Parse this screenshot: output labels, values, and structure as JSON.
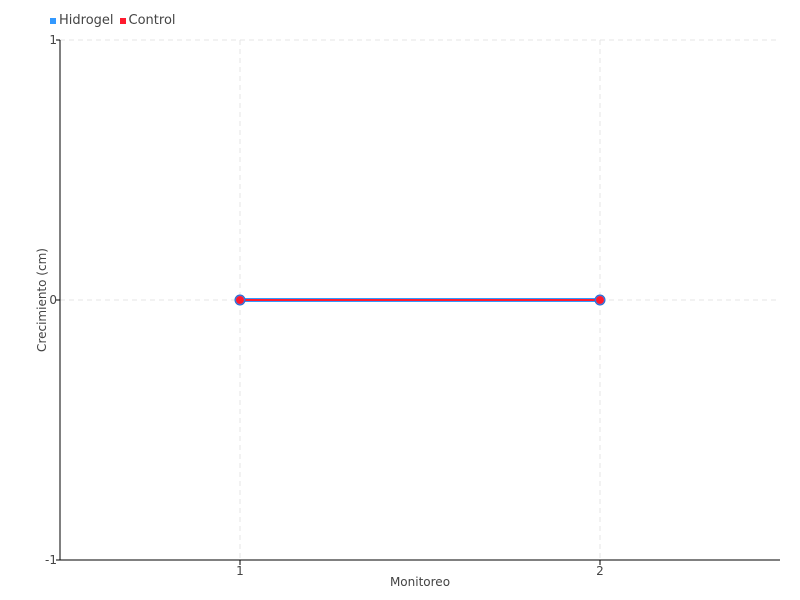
{
  "chart_data": {
    "type": "line",
    "xlabel": "Monitoreo",
    "ylabel": "Crecimiento (cm)",
    "categories": [
      "1",
      "2"
    ],
    "x": [
      1,
      2
    ],
    "xlim": [
      0.5,
      2.5
    ],
    "ylim": [
      -1,
      1
    ],
    "yticks": [
      "-1",
      "0",
      "1"
    ],
    "grid": true,
    "legend_position": "top-left",
    "series": [
      {
        "name": "Hidrogel",
        "values": [
          0,
          0
        ],
        "color": "#3399ff"
      },
      {
        "name": "Control",
        "values": [
          0,
          0
        ],
        "color": "#ff1a2e"
      }
    ]
  }
}
